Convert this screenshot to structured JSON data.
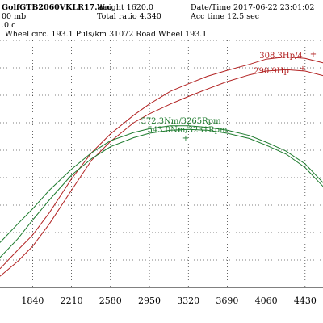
{
  "header": {
    "file": "GolfGTB2060VKLR17.acc",
    "weight": "Weight   1620.0",
    "datetime": "Date/Time  2017-06-22 23:01:02",
    "pressure": "00 mb",
    "ratio": "Total ratio 4.340",
    "acc_time": "Acc time   12.5 sec",
    "temp": ".0 c",
    "wheel": "Wheel circ. 193.1  Puls/km  31072  Road Wheel 193.1"
  },
  "chart_data": {
    "type": "line",
    "x_ticks": [
      "1840",
      "2210",
      "2580",
      "2950",
      "3320",
      "3690",
      "4060",
      "4430"
    ],
    "x_tick_values": [
      1840,
      2210,
      2580,
      2950,
      3320,
      3690,
      4060,
      4430
    ],
    "xlim": [
      1530,
      4600
    ],
    "ylim": [
      0,
      330
    ],
    "grid": true,
    "colors": {
      "power": "#b22222",
      "torque": "#1e7b2e",
      "grid": "#000000"
    },
    "annotations": [
      {
        "text": "308.3Hp/4",
        "color": "#b22222"
      },
      {
        "text": "290.9Hp",
        "color": "#b22222"
      },
      {
        "text": "572.3Nm/3265Rpm",
        "color": "#1e7b2e"
      },
      {
        "text": "543.0Nm/3231Rpm",
        "color": "#1e7b2e"
      }
    ],
    "series": [
      {
        "kind": "power",
        "x": [
          1530,
          1700,
          1840,
          2000,
          2210,
          2400,
          2580,
          2800,
          2950,
          3150,
          3320,
          3500,
          3690,
          3900,
          4060,
          4250,
          4430,
          4600
        ],
        "y": [
          25,
          50,
          70,
          100,
          145,
          180,
          205,
          230,
          245,
          262,
          272,
          282,
          290,
          298,
          305,
          308,
          306,
          300
        ]
      },
      {
        "kind": "power",
        "x": [
          1530,
          1700,
          1840,
          2000,
          2210,
          2400,
          2580,
          2800,
          2950,
          3150,
          3320,
          3500,
          3690,
          3900,
          4060,
          4250,
          4430,
          4600
        ],
        "y": [
          15,
          35,
          55,
          85,
          130,
          170,
          195,
          220,
          232,
          245,
          255,
          265,
          275,
          284,
          289,
          291,
          289,
          283
        ]
      },
      {
        "kind": "torque",
        "x": [
          1530,
          1700,
          1840,
          2000,
          2210,
          2400,
          2580,
          2800,
          2950,
          3150,
          3320,
          3500,
          3690,
          3900,
          4060,
          4250,
          4430,
          4600
        ],
        "y": [
          60,
          85,
          105,
          130,
          158,
          180,
          196,
          207,
          212,
          216,
          216,
          214,
          210,
          203,
          194,
          182,
          165,
          140
        ]
      },
      {
        "kind": "torque",
        "x": [
          1530,
          1700,
          1840,
          2000,
          2210,
          2400,
          2580,
          2800,
          2950,
          3150,
          3320,
          3500,
          3690,
          3900,
          4060,
          4250,
          4430,
          4600
        ],
        "y": [
          40,
          65,
          90,
          117,
          150,
          172,
          188,
          200,
          206,
          210,
          211,
          210,
          206,
          199,
          190,
          178,
          160,
          135
        ]
      }
    ]
  }
}
